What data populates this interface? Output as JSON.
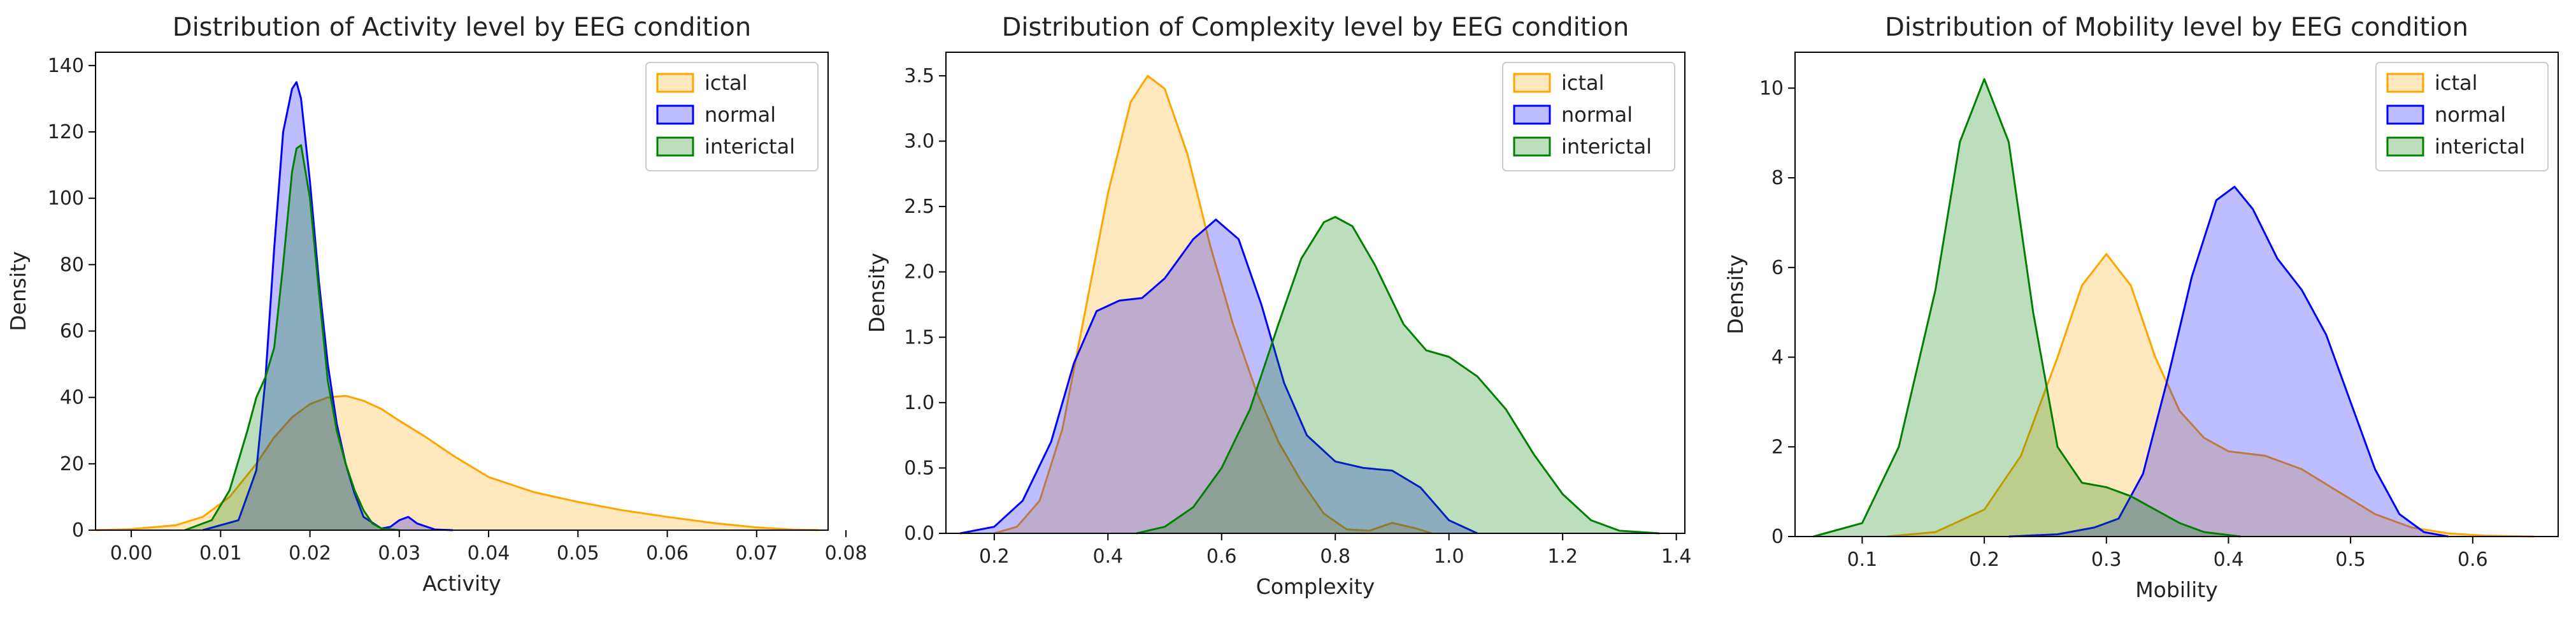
{
  "chart_data": [
    {
      "type": "area",
      "title": "Distribution of Activity level by EEG condition",
      "xlabel": "Activity",
      "ylabel": "Density",
      "xlim": [
        -0.004,
        0.078
      ],
      "ylim": [
        0,
        144
      ],
      "xticks": [
        0.0,
        0.01,
        0.02,
        0.03,
        0.04,
        0.05,
        0.06,
        0.07,
        0.08
      ],
      "xtick_labels": [
        "0.00",
        "0.01",
        "0.02",
        "0.03",
        "0.04",
        "0.05",
        "0.06",
        "0.07",
        "0.08"
      ],
      "yticks": [
        0,
        20,
        40,
        60,
        80,
        100,
        120,
        140
      ],
      "ytick_labels": [
        "0",
        "20",
        "40",
        "60",
        "80",
        "100",
        "120",
        "140"
      ],
      "legend_position": "top-right",
      "series": [
        {
          "name": "ictal",
          "color": "#FFA500",
          "x": [
            -0.004,
            0.0,
            0.005,
            0.008,
            0.011,
            0.014,
            0.016,
            0.018,
            0.02,
            0.022,
            0.024,
            0.026,
            0.028,
            0.03,
            0.033,
            0.036,
            0.04,
            0.045,
            0.05,
            0.055,
            0.06,
            0.065,
            0.07,
            0.074,
            0.077
          ],
          "y": [
            0,
            0.3,
            1.5,
            4,
            10,
            20,
            28,
            34,
            38,
            40,
            40.5,
            39,
            36.5,
            33,
            28,
            22.5,
            16,
            11.5,
            8.5,
            6,
            4,
            2.2,
            0.8,
            0.2,
            0
          ]
        },
        {
          "name": "normal",
          "color": "#0000FF",
          "x": [
            0.008,
            0.012,
            0.014,
            0.015,
            0.016,
            0.017,
            0.018,
            0.0185,
            0.019,
            0.02,
            0.021,
            0.022,
            0.023,
            0.024,
            0.025,
            0.026,
            0.028,
            0.029,
            0.03,
            0.031,
            0.032,
            0.034,
            0.036
          ],
          "y": [
            0,
            3,
            18,
            45,
            85,
            120,
            133,
            135,
            130,
            105,
            75,
            50,
            32,
            20,
            11,
            4,
            0.5,
            1,
            3,
            4,
            2,
            0.2,
            0
          ]
        },
        {
          "name": "interictal",
          "color": "#008000",
          "x": [
            0.006,
            0.009,
            0.011,
            0.013,
            0.014,
            0.015,
            0.016,
            0.017,
            0.018,
            0.0185,
            0.019,
            0.02,
            0.021,
            0.022,
            0.023,
            0.024,
            0.025,
            0.026,
            0.027,
            0.028,
            0.03
          ],
          "y": [
            0,
            3,
            12,
            30,
            40,
            46,
            55,
            80,
            108,
            115,
            116,
            100,
            72,
            45,
            30,
            20,
            12,
            6,
            2,
            0.5,
            0
          ]
        }
      ]
    },
    {
      "type": "area",
      "title": "Distribution of Complexity level by EEG condition",
      "xlabel": "Complexity",
      "ylabel": "Density",
      "xlim": [
        0.115,
        1.415
      ],
      "ylim": [
        0,
        3.68
      ],
      "xticks": [
        0.2,
        0.4,
        0.6,
        0.8,
        1.0,
        1.2,
        1.4
      ],
      "xtick_labels": [
        "0.2",
        "0.4",
        "0.6",
        "0.8",
        "1.0",
        "1.2",
        "1.4"
      ],
      "yticks": [
        0,
        0.5,
        1.0,
        1.5,
        2.0,
        2.5,
        3.0,
        3.5
      ],
      "ytick_labels": [
        "0.0",
        "0.5",
        "1.0",
        "1.5",
        "2.0",
        "2.5",
        "3.0",
        "3.5"
      ],
      "legend_position": "top-right",
      "series": [
        {
          "name": "ictal",
          "color": "#FFA500",
          "x": [
            0.2,
            0.24,
            0.28,
            0.32,
            0.36,
            0.4,
            0.44,
            0.47,
            0.5,
            0.54,
            0.58,
            0.62,
            0.66,
            0.7,
            0.74,
            0.78,
            0.82,
            0.86,
            0.9,
            0.94,
            0.97
          ],
          "y": [
            0,
            0.05,
            0.25,
            0.8,
            1.7,
            2.6,
            3.3,
            3.5,
            3.4,
            2.9,
            2.2,
            1.6,
            1.1,
            0.7,
            0.4,
            0.15,
            0.03,
            0.02,
            0.08,
            0.04,
            0
          ]
        },
        {
          "name": "normal",
          "color": "#0000FF",
          "x": [
            0.14,
            0.2,
            0.25,
            0.3,
            0.34,
            0.38,
            0.42,
            0.46,
            0.5,
            0.55,
            0.59,
            0.63,
            0.67,
            0.71,
            0.75,
            0.8,
            0.85,
            0.9,
            0.95,
            1.0,
            1.05
          ],
          "y": [
            0,
            0.05,
            0.25,
            0.7,
            1.3,
            1.7,
            1.78,
            1.8,
            1.95,
            2.25,
            2.4,
            2.25,
            1.75,
            1.15,
            0.75,
            0.55,
            0.5,
            0.48,
            0.35,
            0.1,
            0
          ]
        },
        {
          "name": "interictal",
          "color": "#008000",
          "x": [
            0.45,
            0.5,
            0.55,
            0.6,
            0.65,
            0.7,
            0.74,
            0.78,
            0.8,
            0.83,
            0.87,
            0.92,
            0.96,
            1.0,
            1.05,
            1.1,
            1.15,
            1.2,
            1.25,
            1.3,
            1.37
          ],
          "y": [
            0,
            0.05,
            0.2,
            0.5,
            0.95,
            1.6,
            2.1,
            2.38,
            2.42,
            2.35,
            2.05,
            1.6,
            1.4,
            1.35,
            1.2,
            0.95,
            0.6,
            0.3,
            0.1,
            0.02,
            0
          ]
        }
      ]
    },
    {
      "type": "area",
      "title": "Distribution of Mobility level by EEG condition",
      "xlabel": "Mobility",
      "ylabel": "Density",
      "xlim": [
        0.045,
        0.67
      ],
      "ylim": [
        0,
        10.8
      ],
      "xticks": [
        0.1,
        0.2,
        0.3,
        0.4,
        0.5,
        0.6
      ],
      "xtick_labels": [
        "0.1",
        "0.2",
        "0.3",
        "0.4",
        "0.5",
        "0.6"
      ],
      "yticks": [
        0,
        2,
        4,
        6,
        8,
        10
      ],
      "ytick_labels": [
        "0",
        "2",
        "4",
        "6",
        "8",
        "10"
      ],
      "legend_position": "top-right",
      "series": [
        {
          "name": "ictal",
          "color": "#FFA500",
          "x": [
            0.12,
            0.16,
            0.2,
            0.23,
            0.26,
            0.28,
            0.3,
            0.32,
            0.34,
            0.36,
            0.38,
            0.4,
            0.43,
            0.46,
            0.49,
            0.52,
            0.55,
            0.58,
            0.61,
            0.65
          ],
          "y": [
            0,
            0.1,
            0.6,
            1.8,
            4.0,
            5.6,
            6.3,
            5.6,
            4.0,
            2.8,
            2.2,
            1.9,
            1.8,
            1.5,
            1.0,
            0.5,
            0.2,
            0.07,
            0.02,
            0
          ]
        },
        {
          "name": "normal",
          "color": "#0000FF",
          "x": [
            0.22,
            0.26,
            0.29,
            0.31,
            0.33,
            0.35,
            0.37,
            0.39,
            0.405,
            0.42,
            0.44,
            0.46,
            0.48,
            0.5,
            0.52,
            0.54,
            0.56,
            0.58
          ],
          "y": [
            0,
            0.05,
            0.2,
            0.4,
            1.4,
            3.5,
            5.8,
            7.5,
            7.8,
            7.3,
            6.2,
            5.5,
            4.5,
            3.0,
            1.5,
            0.5,
            0.1,
            0
          ]
        },
        {
          "name": "interictal",
          "color": "#008000",
          "x": [
            0.06,
            0.1,
            0.13,
            0.16,
            0.18,
            0.2,
            0.22,
            0.24,
            0.26,
            0.28,
            0.3,
            0.32,
            0.34,
            0.36,
            0.38,
            0.41
          ],
          "y": [
            0,
            0.3,
            2.0,
            5.5,
            8.8,
            10.2,
            8.8,
            5.0,
            2.0,
            1.2,
            1.1,
            0.9,
            0.6,
            0.3,
            0.1,
            0
          ]
        }
      ]
    }
  ]
}
